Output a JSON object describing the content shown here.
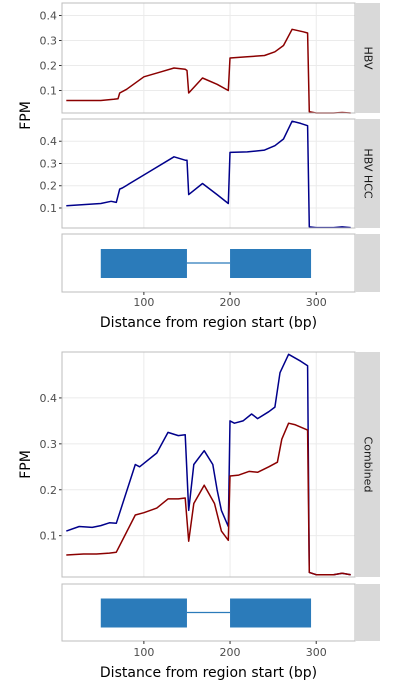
{
  "chart_data": [
    {
      "type": "line",
      "facet_label": "HBV",
      "ylabel": "FPM",
      "ylim": [
        0.01,
        0.45
      ],
      "yticks": [
        "0.1",
        "0.2",
        "0.3",
        "0.4"
      ],
      "series": [
        {
          "color": "#8b0000",
          "points": [
            [
              10,
              0.06
            ],
            [
              30,
              0.06
            ],
            [
              50,
              0.06
            ],
            [
              65,
              0.065
            ],
            [
              70,
              0.067
            ],
            [
              72,
              0.09
            ],
            [
              80,
              0.105
            ],
            [
              100,
              0.155
            ],
            [
              120,
              0.175
            ],
            [
              135,
              0.19
            ],
            [
              148,
              0.185
            ],
            [
              150,
              0.18
            ],
            [
              152,
              0.09
            ],
            [
              168,
              0.15
            ],
            [
              185,
              0.125
            ],
            [
              198,
              0.1
            ],
            [
              200,
              0.23
            ],
            [
              220,
              0.235
            ],
            [
              240,
              0.24
            ],
            [
              252,
              0.255
            ],
            [
              262,
              0.28
            ],
            [
              272,
              0.345
            ],
            [
              285,
              0.335
            ],
            [
              290,
              0.33
            ],
            [
              292,
              0.015
            ],
            [
              300,
              0.01
            ],
            [
              320,
              0.01
            ],
            [
              330,
              0.012
            ],
            [
              340,
              0.01
            ]
          ]
        }
      ]
    },
    {
      "type": "line",
      "facet_label": "HBV HCC",
      "ylabel": "FPM",
      "ylim": [
        0.01,
        0.5
      ],
      "yticks": [
        "0.1",
        "0.2",
        "0.3",
        "0.4"
      ],
      "series": [
        {
          "color": "#00008b",
          "points": [
            [
              10,
              0.11
            ],
            [
              30,
              0.115
            ],
            [
              50,
              0.12
            ],
            [
              62,
              0.13
            ],
            [
              68,
              0.125
            ],
            [
              72,
              0.185
            ],
            [
              75,
              0.19
            ],
            [
              105,
              0.26
            ],
            [
              135,
              0.33
            ],
            [
              148,
              0.315
            ],
            [
              150,
              0.315
            ],
            [
              152,
              0.16
            ],
            [
              168,
              0.21
            ],
            [
              185,
              0.16
            ],
            [
              198,
              0.12
            ],
            [
              200,
              0.35
            ],
            [
              220,
              0.352
            ],
            [
              240,
              0.36
            ],
            [
              252,
              0.38
            ],
            [
              262,
              0.41
            ],
            [
              272,
              0.49
            ],
            [
              282,
              0.48
            ],
            [
              290,
              0.47
            ],
            [
              292,
              0.015
            ],
            [
              300,
              0.012
            ],
            [
              320,
              0.012
            ],
            [
              330,
              0.015
            ],
            [
              340,
              0.012
            ]
          ]
        }
      ]
    },
    {
      "type": "line",
      "facet_label": "Combined",
      "ylabel": "FPM",
      "ylim": [
        0.01,
        0.5
      ],
      "yticks": [
        "0.1",
        "0.2",
        "0.3",
        "0.4"
      ],
      "series": [
        {
          "color": "#00008b",
          "points": [
            [
              10,
              0.11
            ],
            [
              25,
              0.12
            ],
            [
              40,
              0.118
            ],
            [
              50,
              0.122
            ],
            [
              60,
              0.128
            ],
            [
              68,
              0.127
            ],
            [
              90,
              0.255
            ],
            [
              95,
              0.25
            ],
            [
              115,
              0.28
            ],
            [
              128,
              0.325
            ],
            [
              140,
              0.318
            ],
            [
              148,
              0.32
            ],
            [
              152,
              0.155
            ],
            [
              158,
              0.255
            ],
            [
              170,
              0.285
            ],
            [
              180,
              0.255
            ],
            [
              185,
              0.2
            ],
            [
              190,
              0.155
            ],
            [
              198,
              0.12
            ],
            [
              200,
              0.35
            ],
            [
              205,
              0.345
            ],
            [
              215,
              0.35
            ],
            [
              225,
              0.365
            ],
            [
              232,
              0.355
            ],
            [
              245,
              0.37
            ],
            [
              252,
              0.38
            ],
            [
              258,
              0.455
            ],
            [
              268,
              0.495
            ],
            [
              282,
              0.48
            ],
            [
              290,
              0.47
            ],
            [
              292,
              0.02
            ],
            [
              300,
              0.015
            ],
            [
              320,
              0.015
            ],
            [
              330,
              0.018
            ],
            [
              340,
              0.015
            ]
          ]
        },
        {
          "color": "#8b0000",
          "points": [
            [
              10,
              0.058
            ],
            [
              30,
              0.06
            ],
            [
              45,
              0.06
            ],
            [
              60,
              0.062
            ],
            [
              68,
              0.064
            ],
            [
              90,
              0.145
            ],
            [
              100,
              0.15
            ],
            [
              115,
              0.16
            ],
            [
              128,
              0.18
            ],
            [
              140,
              0.18
            ],
            [
              148,
              0.182
            ],
            [
              152,
              0.088
            ],
            [
              158,
              0.17
            ],
            [
              170,
              0.21
            ],
            [
              182,
              0.17
            ],
            [
              190,
              0.11
            ],
            [
              198,
              0.09
            ],
            [
              200,
              0.23
            ],
            [
              210,
              0.232
            ],
            [
              222,
              0.24
            ],
            [
              232,
              0.238
            ],
            [
              245,
              0.25
            ],
            [
              255,
              0.26
            ],
            [
              260,
              0.31
            ],
            [
              268,
              0.345
            ],
            [
              275,
              0.342
            ],
            [
              290,
              0.33
            ],
            [
              292,
              0.02
            ],
            [
              300,
              0.015
            ],
            [
              320,
              0.015
            ],
            [
              330,
              0.018
            ],
            [
              340,
              0.015
            ]
          ]
        }
      ]
    }
  ],
  "gene_model": {
    "exons": [
      [
        50,
        150
      ],
      [
        200,
        294
      ]
    ],
    "intron": [
      150,
      200
    ],
    "color": "#2b7bba"
  },
  "x_axis": {
    "xlim": [
      5,
      345
    ],
    "ticks": [
      100,
      200,
      300
    ],
    "tick_labels": [
      "100",
      "200",
      "300"
    ],
    "title": "Distance from region start (bp)"
  }
}
